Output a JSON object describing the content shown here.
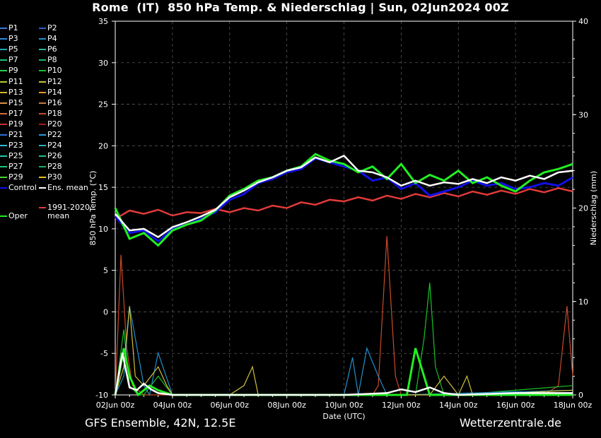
{
  "title": "Rome  (IT)  850 hPa Temp. & Niederschlag | Sun, 02Jun2024 00Z",
  "footer": {
    "model": "GFS Ensemble, 42N, 12.5E",
    "source": "Wetterzentrale.de"
  },
  "legend": [
    {
      "label": "P1",
      "color": "#3a7bd5"
    },
    {
      "label": "P2",
      "color": "#2a5fd0"
    },
    {
      "label": "P3",
      "color": "#2f86d8"
    },
    {
      "label": "P4",
      "color": "#1f8fcf"
    },
    {
      "label": "P5",
      "color": "#21a6b8"
    },
    {
      "label": "P6",
      "color": "#22b89a"
    },
    {
      "label": "P7",
      "color": "#1fbf7e"
    },
    {
      "label": "P8",
      "color": "#17b86a"
    },
    {
      "label": "P9",
      "color": "#2fd04c"
    },
    {
      "label": "P10",
      "color": "#16c225"
    },
    {
      "label": "P11",
      "color": "#b8c930"
    },
    {
      "label": "P12",
      "color": "#d0c038"
    },
    {
      "label": "P13",
      "color": "#d8b232"
    },
    {
      "label": "P14",
      "color": "#e09a28"
    },
    {
      "label": "P15",
      "color": "#d88f4a"
    },
    {
      "label": "P16",
      "color": "#c47a3a"
    },
    {
      "label": "P17",
      "color": "#d26a3a"
    },
    {
      "label": "P18",
      "color": "#c84a2c"
    },
    {
      "label": "P19",
      "color": "#c8322c"
    },
    {
      "label": "P20",
      "color": "#a81c1c"
    },
    {
      "label": "P21",
      "color": "#2a6ed8"
    },
    {
      "label": "P22",
      "color": "#2c9ae0"
    },
    {
      "label": "P23",
      "color": "#31b5d6"
    },
    {
      "label": "P24",
      "color": "#27b0bd"
    },
    {
      "label": "P25",
      "color": "#22c8a0"
    },
    {
      "label": "P26",
      "color": "#1fc08a"
    },
    {
      "label": "P27",
      "color": "#21c47c"
    },
    {
      "label": "P28",
      "color": "#18b065"
    },
    {
      "label": "P29",
      "color": "#47d236"
    },
    {
      "label": "P30",
      "color": "#e2c224"
    },
    {
      "label": "Control",
      "color": "#1010e6"
    },
    {
      "label": "Ens. mean",
      "color": "#ffffff"
    },
    {
      "label": "Oper",
      "color": "#22ee22"
    },
    {
      "label": "1991-2020 mean",
      "color": "#e23a3a"
    }
  ],
  "chart_data": {
    "type": "line",
    "xlabel": "Date (UTC)",
    "ylabel": "850 hPa Temp. (°C)",
    "y2label": "Niederschlag (mm)",
    "xlim": [
      0,
      16
    ],
    "ylim": [
      -10,
      35
    ],
    "y2lim": [
      0,
      40
    ],
    "x_ticks": [
      {
        "x": 0,
        "label": "02Jun 00z"
      },
      {
        "x": 2,
        "label": "04Jun 00z"
      },
      {
        "x": 4,
        "label": "06Jun 00z"
      },
      {
        "x": 6,
        "label": "08Jun 00z"
      },
      {
        "x": 8,
        "label": "10Jun 00z"
      },
      {
        "x": 10,
        "label": "12Jun 00z"
      },
      {
        "x": 12,
        "label": "14Jun 00z"
      },
      {
        "x": 14,
        "label": "16Jun 00z"
      },
      {
        "x": 16,
        "label": "18Jun 00z"
      }
    ],
    "y_ticks": [
      -10,
      -5,
      0,
      5,
      10,
      15,
      20,
      25,
      30,
      35
    ],
    "y2_ticks": [
      0,
      10,
      20,
      30,
      40
    ],
    "grid": true,
    "legend_position": "left",
    "series": [
      {
        "name": "1991-2020 mean",
        "color": "#e23a3a",
        "width": 2.5,
        "x": [
          0,
          0.5,
          1,
          1.5,
          2,
          2.5,
          3,
          3.5,
          4,
          4.5,
          5,
          5.5,
          6,
          6.5,
          7,
          7.5,
          8,
          8.5,
          9,
          9.5,
          10,
          10.5,
          11,
          11.5,
          12,
          12.5,
          13,
          13.5,
          14,
          14.5,
          15,
          15.5,
          16
        ],
        "y": [
          11.2,
          12.2,
          11.8,
          12.3,
          11.6,
          12.0,
          11.9,
          12.4,
          12.0,
          12.5,
          12.2,
          12.8,
          12.5,
          13.2,
          12.9,
          13.5,
          13.3,
          13.8,
          13.4,
          14.0,
          13.6,
          14.2,
          13.8,
          14.3,
          13.9,
          14.5,
          14.1,
          14.6,
          14.2,
          14.8,
          14.4,
          14.9,
          14.5
        ]
      },
      {
        "name": "Control",
        "color": "#1010e6",
        "width": 3,
        "x": [
          0,
          0.5,
          1,
          1.5,
          2,
          2.5,
          3,
          3.5,
          4,
          4.5,
          5,
          5.5,
          6,
          6.5,
          7,
          7.5,
          8,
          8.5,
          9,
          9.5,
          10,
          10.5,
          11,
          11.5,
          12,
          12.5,
          13,
          13.5,
          14,
          14.5,
          15,
          15.5,
          16
        ],
        "y": [
          11.5,
          9.5,
          9.8,
          8.5,
          10.0,
          10.5,
          11.2,
          12.0,
          13.5,
          14.2,
          15.5,
          16.0,
          16.8,
          17.2,
          18.5,
          18.0,
          17.5,
          17.0,
          15.8,
          16.2,
          14.8,
          15.5,
          14.0,
          14.5,
          15.0,
          15.8,
          15.2,
          15.5,
          14.8,
          15.0,
          15.5,
          15.2,
          16.2
        ]
      },
      {
        "name": "Oper",
        "color": "#22ee22",
        "width": 3,
        "x": [
          0,
          0.5,
          1,
          1.5,
          2,
          2.5,
          3,
          3.5,
          4,
          4.5,
          5,
          5.5,
          6,
          6.5,
          7,
          7.5,
          8,
          8.5,
          9,
          9.5,
          10,
          10.5,
          11,
          11.5,
          12,
          12.5,
          13,
          13.5,
          14,
          14.5,
          15,
          15.5,
          16
        ],
        "y": [
          12.5,
          8.8,
          9.5,
          8.0,
          9.8,
          10.5,
          11.0,
          12.2,
          14.0,
          14.8,
          15.8,
          16.2,
          17.0,
          17.5,
          19.0,
          18.2,
          17.8,
          16.8,
          17.5,
          16.0,
          17.8,
          15.5,
          16.5,
          15.8,
          17.0,
          15.5,
          16.2,
          15.2,
          14.5,
          15.8,
          16.8,
          17.2,
          17.8
        ]
      },
      {
        "name": "Ens. mean",
        "color": "#ffffff",
        "width": 2.5,
        "x": [
          0,
          0.5,
          1,
          1.5,
          2,
          2.5,
          3,
          3.5,
          4,
          4.5,
          5,
          5.5,
          6,
          6.5,
          7,
          7.5,
          8,
          8.5,
          9,
          9.5,
          10,
          10.5,
          11,
          11.5,
          12,
          12.5,
          13,
          13.5,
          14,
          14.5,
          15,
          15.5,
          16
        ],
        "y": [
          11.8,
          9.8,
          10.0,
          9.0,
          10.2,
          10.8,
          11.5,
          12.3,
          13.8,
          14.6,
          15.6,
          16.2,
          17.0,
          17.4,
          18.6,
          18.0,
          18.8,
          17.0,
          16.8,
          16.2,
          15.2,
          15.8,
          15.2,
          15.6,
          15.4,
          16.0,
          15.5,
          16.2,
          15.8,
          16.4,
          16.0,
          16.8,
          17.0
        ]
      }
    ],
    "precip_series": [
      {
        "name": "P18",
        "color": "#c84a2c",
        "x": [
          0,
          0.2,
          0.4,
          0.6,
          1,
          2,
          8,
          9,
          9.2,
          9.5,
          9.8,
          10,
          12,
          14,
          15,
          15.5,
          15.8,
          16
        ],
        "y": [
          0,
          15,
          5,
          1,
          0,
          0,
          0,
          0,
          1,
          17,
          2,
          0,
          0,
          0,
          0,
          1,
          9.5,
          2
        ]
      },
      {
        "name": "P10",
        "color": "#16c225",
        "x": [
          0,
          0.3,
          0.5,
          0.8,
          1,
          1.5,
          2,
          8,
          10,
          10.5,
          10.8,
          11,
          11.2,
          11.5,
          12,
          16
        ],
        "y": [
          0,
          7,
          1,
          0,
          0,
          2,
          0,
          0,
          0,
          0,
          6,
          12,
          3,
          0,
          0,
          1
        ]
      },
      {
        "name": "P4",
        "color": "#1f8fcf",
        "x": [
          0,
          0.3,
          0.5,
          1,
          1.2,
          1.5,
          2,
          7.5,
          8,
          8.3,
          8.5,
          8.8,
          9.2,
          9.5,
          10,
          16
        ],
        "y": [
          0,
          2,
          9.5,
          1,
          0,
          4.5,
          0,
          0,
          0,
          4,
          0,
          5,
          2,
          0,
          0,
          0.5
        ]
      },
      {
        "name": "P12",
        "color": "#d0c038",
        "x": [
          0,
          0.3,
          0.5,
          0.7,
          1,
          1.5,
          1.8,
          2,
          4,
          4.5,
          4.8,
          5,
          8,
          11,
          11.5,
          12,
          12.3,
          12.5,
          16
        ],
        "y": [
          0,
          3,
          9.5,
          2,
          1,
          3,
          1,
          0,
          0,
          1,
          3,
          0,
          0,
          0,
          2,
          0,
          2,
          0,
          0.5
        ]
      },
      {
        "name": "Oper",
        "color": "#22ee22",
        "width": 3,
        "x": [
          0,
          0.3,
          0.5,
          0.8,
          1.2,
          1.5,
          2,
          9.5,
          10,
          10.2,
          10.5,
          10.8,
          11,
          11.3,
          11.5,
          12,
          16
        ],
        "y": [
          0,
          5,
          2,
          0,
          1,
          0.5,
          0,
          0,
          0,
          0,
          5,
          2,
          0,
          0,
          0,
          0,
          0
        ]
      },
      {
        "name": "Ens. mean",
        "color": "#ffffff",
        "width": 2.5,
        "x": [
          0,
          0.25,
          0.5,
          0.75,
          1,
          1.25,
          1.5,
          2,
          8,
          9.5,
          10,
          10.5,
          11,
          11.5,
          12,
          14,
          16
        ],
        "y": [
          0,
          4.5,
          0.8,
          0.5,
          1.2,
          0.6,
          0.2,
          0,
          0,
          0.2,
          0.6,
          0.3,
          0.8,
          0.2,
          0,
          0.2,
          0.2
        ]
      }
    ]
  }
}
